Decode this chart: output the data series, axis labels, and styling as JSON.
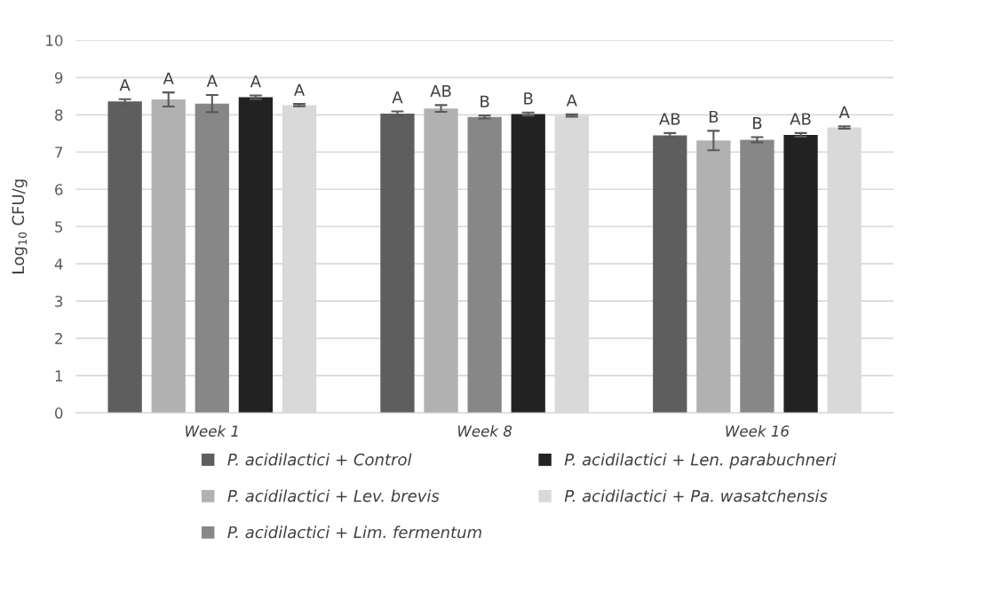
{
  "chart_data": {
    "type": "bar",
    "ylabel": "Log$_{10}$ CFU/g",
    "categories": [
      "Week 1",
      "Week 8",
      "Week 16"
    ],
    "series": [
      {
        "name": "P. acidilactici + Control",
        "color": "#5e5e5e",
        "values": [
          8.36,
          8.03,
          7.45
        ],
        "errors": [
          0.06,
          0.06,
          0.06
        ],
        "value_labels": [
          "A",
          "A",
          "AB"
        ]
      },
      {
        "name": "P. acidilactici + Lev. brevis",
        "color": "#b1b1b1",
        "values": [
          8.41,
          8.17,
          7.31
        ],
        "errors": [
          0.19,
          0.09,
          0.26
        ],
        "value_labels": [
          "A",
          "AB",
          "B"
        ]
      },
      {
        "name": "P. acidilactici + Lim. fermentum",
        "color": "#878787",
        "values": [
          8.3,
          7.94,
          7.33
        ],
        "errors": [
          0.23,
          0.04,
          0.07
        ],
        "value_labels": [
          "A",
          "B",
          "B"
        ]
      },
      {
        "name": "P. acidilactici + Len. parabuchneri",
        "color": "#222222",
        "values": [
          8.47,
          8.02,
          7.46
        ],
        "errors": [
          0.05,
          0.04,
          0.05
        ],
        "value_labels": [
          "A",
          "B",
          "AB"
        ]
      },
      {
        "name": "P. acidilactici + Pa. wasatchensis",
        "color": "#d9d9d9",
        "values": [
          8.26,
          7.98,
          7.66
        ],
        "errors": [
          0.03,
          0.03,
          0.03
        ],
        "value_labels": [
          "A",
          "A",
          "A"
        ]
      }
    ],
    "ylim": [
      0,
      10
    ],
    "yticks": [
      0,
      1,
      2,
      3,
      4,
      5,
      6,
      7,
      8,
      9,
      10
    ],
    "grid": "y",
    "legend": "bottom"
  }
}
